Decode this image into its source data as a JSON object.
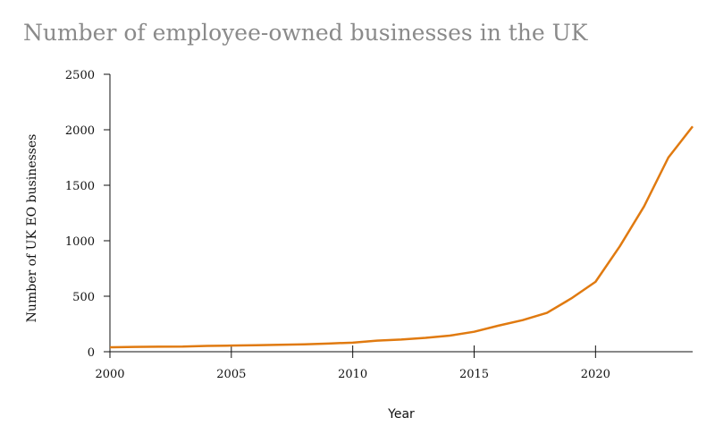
{
  "chart_data": {
    "type": "line",
    "title": "Number of employee-owned businesses in the UK",
    "xlabel": "Year",
    "ylabel": "Number of UK EO businesses",
    "xlim": [
      2000,
      2024
    ],
    "ylim": [
      0,
      2500
    ],
    "x_ticks": [
      2000,
      2005,
      2010,
      2015,
      2020
    ],
    "y_ticks": [
      0,
      500,
      1000,
      1500,
      2000,
      2500
    ],
    "grid": false,
    "line_color": "#e07a10",
    "series": [
      {
        "x": [
          2000,
          2001,
          2002,
          2003,
          2004,
          2005,
          2006,
          2007,
          2008,
          2009,
          2010,
          2011,
          2012,
          2013,
          2014,
          2015,
          2016,
          2017,
          2018,
          2019,
          2020,
          2021,
          2022,
          2023,
          2024
        ],
        "values": [
          40,
          43,
          45,
          46,
          52,
          55,
          58,
          62,
          67,
          74,
          82,
          100,
          110,
          125,
          145,
          180,
          235,
          285,
          350,
          480,
          630,
          950,
          1310,
          1750,
          2030
        ]
      }
    ]
  }
}
